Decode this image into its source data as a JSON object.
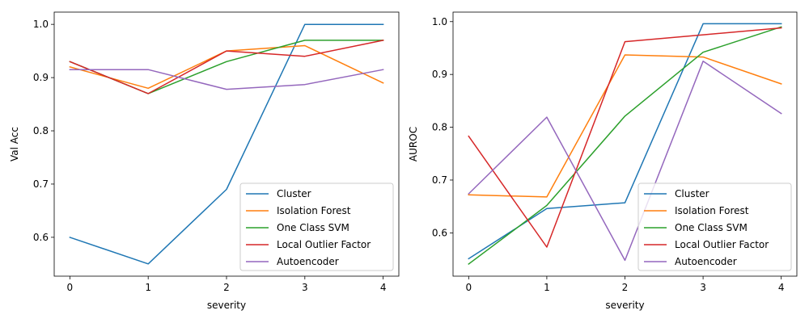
{
  "chart_data": [
    {
      "type": "line",
      "xlabel": "severity",
      "ylabel": "Val Acc",
      "x": [
        0,
        1,
        2,
        3,
        4
      ],
      "xlim": [
        -0.2,
        4.2
      ],
      "ylim": [
        0.527,
        1.023
      ],
      "xticks": [
        "0",
        "1",
        "2",
        "3",
        "4"
      ],
      "yticks": [
        0.6,
        0.7,
        0.8,
        0.9,
        1.0
      ],
      "ytick_labels": [
        "0.6",
        "0.7",
        "0.8",
        "0.9",
        "1.0"
      ],
      "grid": false,
      "legend_position": "lower right",
      "series": [
        {
          "name": "Cluster",
          "color": "#1f77b4",
          "values": [
            0.6,
            0.55,
            0.69,
            1.0,
            1.0
          ]
        },
        {
          "name": "Isolation Forest",
          "color": "#ff7f0e",
          "values": [
            0.92,
            0.88,
            0.95,
            0.96,
            0.89
          ]
        },
        {
          "name": "One Class SVM",
          "color": "#2ca02c",
          "values": [
            0.93,
            0.87,
            0.93,
            0.97,
            0.97
          ]
        },
        {
          "name": "Local Outlier Factor",
          "color": "#d62728",
          "values": [
            0.93,
            0.87,
            0.95,
            0.94,
            0.97
          ]
        },
        {
          "name": "Autoencoder",
          "color": "#9467bd",
          "values": [
            0.915,
            0.915,
            0.878,
            0.887,
            0.915
          ]
        }
      ]
    },
    {
      "type": "line",
      "xlabel": "severity",
      "ylabel": "AUROC",
      "x": [
        0,
        1,
        2,
        3,
        4
      ],
      "xlim": [
        -0.2,
        4.2
      ],
      "ylim": [
        0.518,
        1.018
      ],
      "xticks": [
        "0",
        "1",
        "2",
        "3",
        "4"
      ],
      "yticks": [
        0.6,
        0.7,
        0.8,
        0.9,
        1.0
      ],
      "ytick_labels": [
        "0.6",
        "0.7",
        "0.8",
        "0.9",
        "1.0"
      ],
      "grid": false,
      "legend_position": "lower right",
      "series": [
        {
          "name": "Cluster",
          "color": "#1f77b4",
          "values": [
            0.551,
            0.646,
            0.657,
            0.996,
            0.996
          ]
        },
        {
          "name": "Isolation Forest",
          "color": "#ff7f0e",
          "values": [
            0.672,
            0.668,
            0.937,
            0.933,
            0.882
          ]
        },
        {
          "name": "One Class SVM",
          "color": "#2ca02c",
          "values": [
            0.541,
            0.652,
            0.821,
            0.942,
            0.99
          ]
        },
        {
          "name": "Local Outlier Factor",
          "color": "#d62728",
          "values": [
            0.783,
            0.573,
            0.962,
            0.975,
            0.988
          ]
        },
        {
          "name": "Autoencoder",
          "color": "#9467bd",
          "values": [
            0.674,
            0.819,
            0.548,
            0.925,
            0.826
          ]
        }
      ]
    }
  ]
}
